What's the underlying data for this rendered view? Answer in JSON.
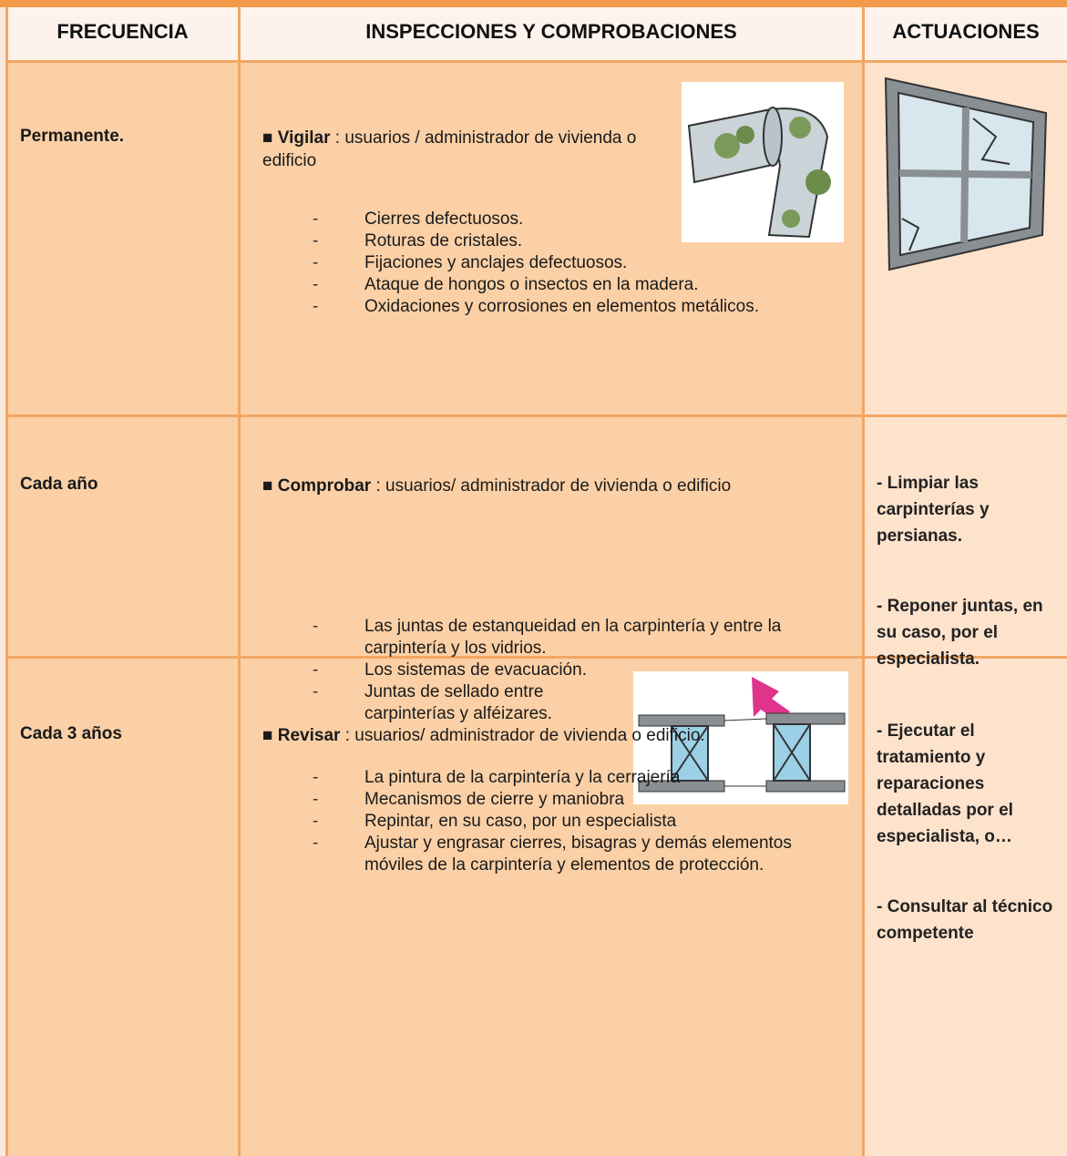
{
  "header": [
    "FRECUENCIA",
    "INSPECCIONES Y COMPROBACIONES",
    "ACTUACIONES"
  ],
  "bullet": "■",
  "marker": "-",
  "rows": [
    {
      "frequency": "Permanente.",
      "verb": "Vigilar",
      "intro": ": usuarios / administrador de vivienda o edificio",
      "items": [
        "Cierres defectuosos.",
        "Roturas de cristales.",
        "Fijaciones y anclajes defectuosos.",
        "Ataque de hongos o insectos en la madera.",
        "Oxidaciones y corrosiones en elementos metálicos."
      ],
      "actions": []
    },
    {
      "frequency": "Cada año",
      "verb": "Comprobar",
      "intro": ": usuarios/ administrador de vivienda o edificio",
      "items": [
        "Las juntas de estanqueidad en la carpintería y entre la carpintería y los vidrios.",
        "Los sistemas de evacuación.",
        "Juntas de sellado entre carpinterías y alféizares."
      ],
      "actions": [
        "- Limpiar las carpinterías y persianas.",
        "- Reponer juntas, en su caso, por el especialista."
      ]
    },
    {
      "frequency": "Cada 3 años",
      "verb": "Revisar",
      "intro": ": usuarios/ administrador de vivienda o edificio.",
      "items": [
        "La pintura de la carpintería y la cerrajería",
        "Mecanismos de cierre y maniobra",
        "Repintar, en su caso, por un especialista",
        "Ajustar y engrasar cierres, bisagras y demás elementos móviles de la carpintería y elementos de protección."
      ],
      "actions": [
        "- Ejecutar el tratamiento y reparaciones detalladas por el especialista, o…",
        "- Consultar al técnico competente"
      ]
    }
  ]
}
